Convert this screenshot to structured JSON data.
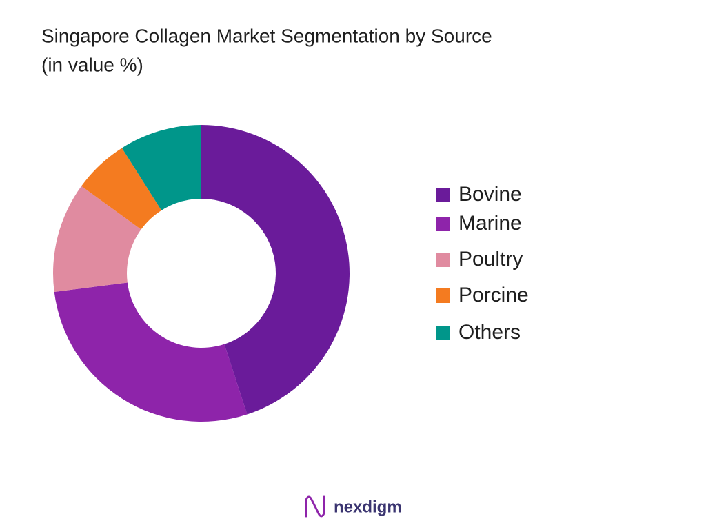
{
  "chart_data": {
    "type": "donut",
    "title": "Singapore Collagen Market  Segmentation by Source",
    "subtitle": "(in value %)",
    "categories": [
      "Bovine",
      "Marine",
      "Poultry",
      "Porcine",
      "Others"
    ],
    "values": [
      45,
      28,
      12,
      6,
      9
    ],
    "colors": [
      "#6a1b9a",
      "#8e24aa",
      "#e08ba0",
      "#f47b20",
      "#00968a"
    ],
    "legend": "right"
  },
  "brand": "nexdigm"
}
